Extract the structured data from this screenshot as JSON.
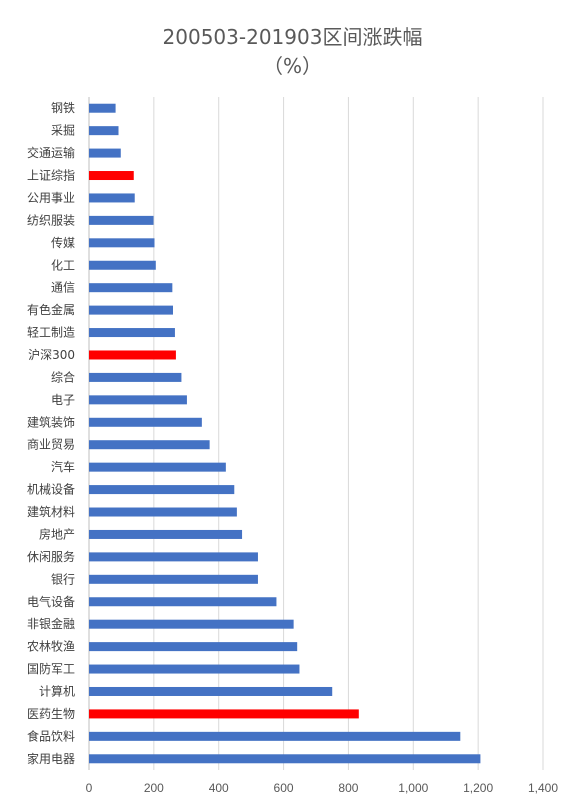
{
  "chart_data": {
    "type": "bar",
    "orientation": "horizontal",
    "title": "200503-201903区间涨跌幅",
    "subtitle": "（%）",
    "xlim": [
      0,
      1400
    ],
    "x_ticks": [
      "0",
      "200",
      "400",
      "600",
      "800",
      "1,000",
      "1,200",
      "1,400"
    ],
    "x_tick_values": [
      0,
      200,
      400,
      600,
      800,
      1000,
      1200,
      1400
    ],
    "grid": "vertical",
    "bar_color": "#4472C4",
    "highlight_color": "#FF0000",
    "categories": [
      "钢铁",
      "采掘",
      "交通运输",
      "上证综指",
      "公用事业",
      "纺织服装",
      "传媒",
      "化工",
      "通信",
      "有色金属",
      "轻工制造",
      "沪深300",
      "综合",
      "电子",
      "建筑装饰",
      "商业贸易",
      "汽车",
      "机械设备",
      "建筑材料",
      "房地产",
      "休闲服务",
      "银行",
      "电气设备",
      "非银金融",
      "农林牧渔",
      "国防军工",
      "计算机",
      "医药生物",
      "食品饮料",
      "家用电器"
    ],
    "values": [
      82,
      91,
      98,
      138,
      141,
      199,
      202,
      206,
      257,
      259,
      265,
      268,
      285,
      302,
      348,
      372,
      422,
      448,
      456,
      472,
      521,
      521,
      578,
      631,
      642,
      649,
      750,
      832,
      1145,
      1207
    ],
    "highlighted": [
      "上证综指",
      "沪深300",
      "医药生物"
    ]
  }
}
